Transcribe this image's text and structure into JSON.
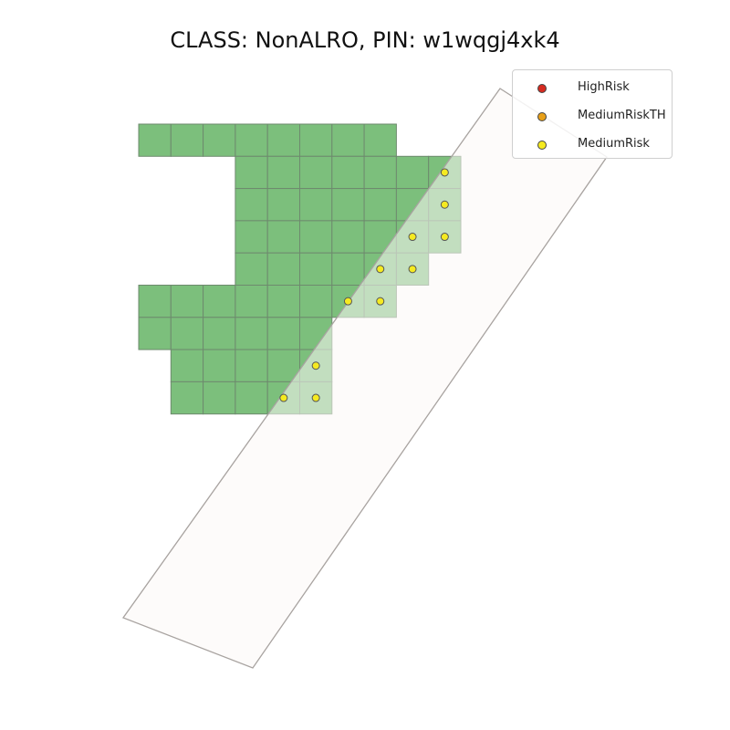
{
  "title": "CLASS: NonALRO, PIN: w1wqgj4xk4",
  "colors": {
    "cell_fill": "#7cbf7c",
    "cell_fill_light": "#a6d0a0",
    "cell_stroke": "#6e8a6e",
    "polygon_fill": "#fcf8f5",
    "polygon_stroke": "#a8a3a0"
  },
  "legend": {
    "items": [
      {
        "label": "HighRisk",
        "color": "#d62a20"
      },
      {
        "label": "MediumRiskTH",
        "color": "#e8a019"
      },
      {
        "label": "MediumRisk",
        "color": "#f5ea20"
      }
    ]
  },
  "grid": {
    "rows": [
      {
        "row": 0,
        "cols": [
          0,
          1,
          2,
          3,
          4,
          5,
          6,
          7
        ]
      },
      {
        "row": 1,
        "cols": [
          3,
          4,
          5,
          6,
          7,
          8,
          9
        ]
      },
      {
        "row": 2,
        "cols": [
          3,
          4,
          5,
          6,
          7,
          8,
          9
        ]
      },
      {
        "row": 3,
        "cols": [
          3,
          4,
          5,
          6,
          7,
          8,
          9
        ]
      },
      {
        "row": 4,
        "cols": [
          3,
          4,
          5,
          6,
          7,
          8
        ]
      },
      {
        "row": 5,
        "cols": [
          0,
          1,
          2,
          3,
          4,
          5,
          6,
          7
        ]
      },
      {
        "row": 6,
        "cols": [
          0,
          1,
          2,
          3,
          4,
          5
        ]
      },
      {
        "row": 7,
        "cols": [
          1,
          2,
          3,
          4,
          5
        ]
      },
      {
        "row": 8,
        "cols": [
          1,
          2,
          3,
          4,
          5
        ]
      }
    ]
  },
  "medium_risk_points": [
    {
      "row": 1,
      "col": 9
    },
    {
      "row": 2,
      "col": 9
    },
    {
      "row": 3,
      "col": 8
    },
    {
      "row": 3,
      "col": 9
    },
    {
      "row": 4,
      "col": 7
    },
    {
      "row": 4,
      "col": 8
    },
    {
      "row": 5,
      "col": 6
    },
    {
      "row": 5,
      "col": 7
    },
    {
      "row": 7,
      "col": 5
    },
    {
      "row": 8,
      "col": 4
    },
    {
      "row": 8,
      "col": 5
    }
  ]
}
